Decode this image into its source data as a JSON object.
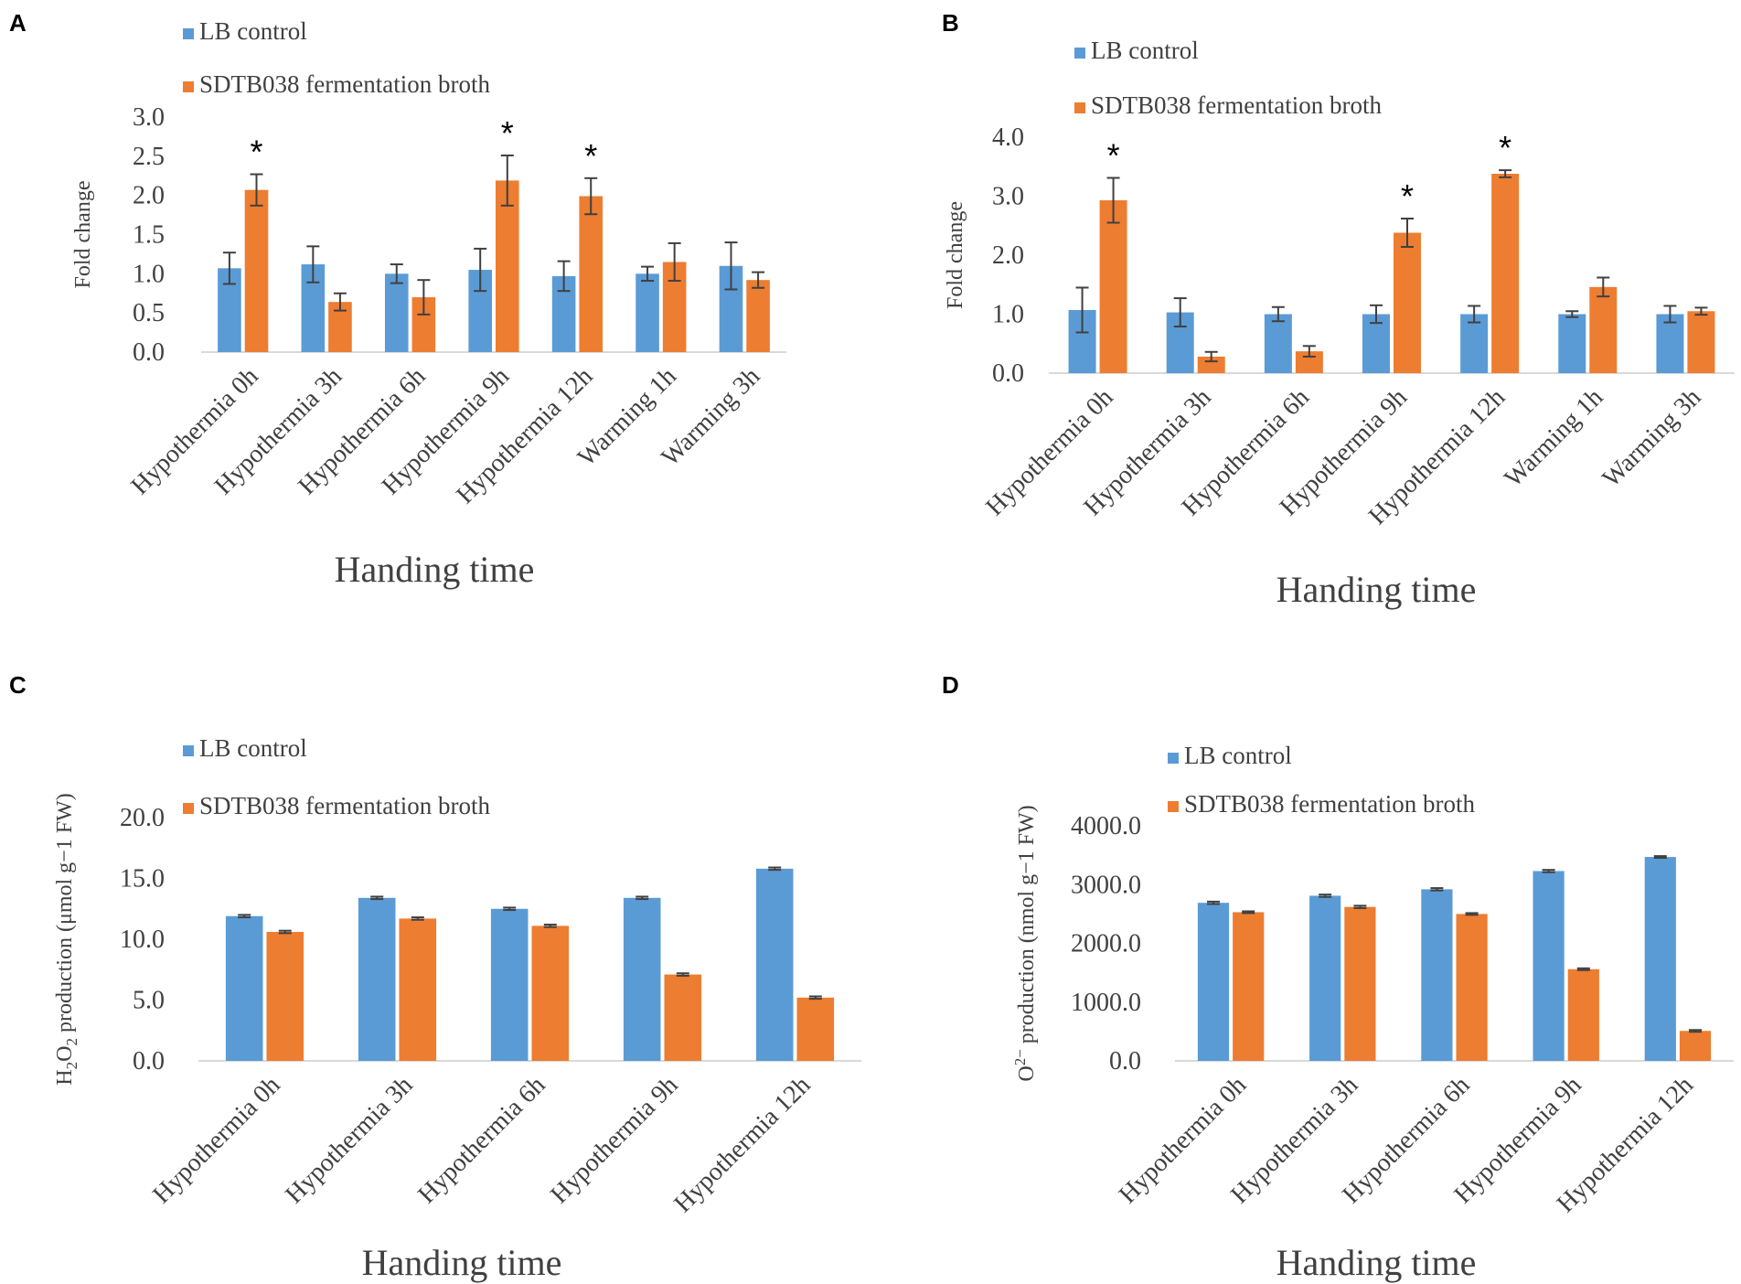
{
  "colors": {
    "control": "#5b9bd5",
    "treated": "#ed7d31",
    "axis": "#d9d9d9",
    "err": "#404040"
  },
  "legend": {
    "control": "LB control",
    "treated": "SDTB038 fermentation broth"
  },
  "chart_data": [
    {
      "panel": "A",
      "type": "bar",
      "xlabel": "Handing time",
      "ylabel": "Fold change",
      "ylim": [
        0,
        3.0
      ],
      "ytick_step": 0.5,
      "ytick_labels": [
        "0.0",
        "0.5",
        "1.0",
        "1.5",
        "2.0",
        "2.5",
        "3.0"
      ],
      "categories": [
        "Hypothermia 0h",
        "Hypothermia 3h",
        "Hypothermia 6h",
        "Hypothermia 9h",
        "Hypothermia 12h",
        "Warming 1h",
        "Warming 3h"
      ],
      "series": [
        {
          "name": "LB control",
          "values": [
            1.07,
            1.12,
            1.0,
            1.05,
            0.97,
            1.0,
            1.1
          ],
          "errors": [
            0.2,
            0.23,
            0.12,
            0.27,
            0.19,
            0.09,
            0.3
          ]
        },
        {
          "name": "SDTB038 fermentation broth",
          "values": [
            2.07,
            0.64,
            0.7,
            2.19,
            1.99,
            1.15,
            0.92
          ],
          "errors": [
            0.2,
            0.11,
            0.22,
            0.32,
            0.23,
            0.24,
            0.1
          ]
        }
      ],
      "significance": [
        "*",
        "",
        "",
        "*",
        "*",
        "",
        ""
      ],
      "sig_series": 1
    },
    {
      "panel": "B",
      "type": "bar",
      "xlabel": "Handing time",
      "ylabel": "Fold change",
      "ylim": [
        0,
        4.0
      ],
      "ytick_step": 1.0,
      "ytick_labels": [
        "0.0",
        "1.0",
        "2.0",
        "3.0",
        "4.0"
      ],
      "categories": [
        "Hypothermia 0h",
        "Hypothermia 3h",
        "Hypothermia 6h",
        "Hypothermia 9h",
        "Hypothermia 12h",
        "Warming 1h",
        "Warming 3h"
      ],
      "series": [
        {
          "name": "LB control",
          "values": [
            1.07,
            1.03,
            1.0,
            1.0,
            1.0,
            1.0,
            1.0
          ],
          "errors": [
            0.38,
            0.24,
            0.12,
            0.15,
            0.14,
            0.05,
            0.14
          ]
        },
        {
          "name": "SDTB038 fermentation broth",
          "values": [
            2.93,
            0.28,
            0.37,
            2.38,
            3.38,
            1.46,
            1.05
          ],
          "errors": [
            0.38,
            0.08,
            0.09,
            0.24,
            0.06,
            0.16,
            0.06
          ]
        }
      ],
      "significance": [
        "*",
        "",
        "",
        "*",
        "*",
        "",
        ""
      ],
      "sig_series": 1
    },
    {
      "panel": "C",
      "type": "bar",
      "xlabel": "Handing time",
      "ylabel": "H2O2 production (μmol g−1 FW)",
      "ylabel_parts": [
        "H",
        "2",
        "O",
        "2",
        " production (μmol g−1 FW)"
      ],
      "ylim": [
        0,
        20.0
      ],
      "ytick_step": 5.0,
      "ytick_labels": [
        "0.0",
        "5.0",
        "10.0",
        "15.0",
        "20.0"
      ],
      "categories": [
        "Hypothermia 0h",
        "Hypothermia 3h",
        "Hypothermia 6h",
        "Hypothermia 9h",
        "Hypothermia 12h"
      ],
      "series": [
        {
          "name": "LB control",
          "values": [
            11.9,
            13.4,
            12.5,
            13.4,
            15.8
          ],
          "errors": [
            0.1,
            0.1,
            0.1,
            0.1,
            0.1
          ]
        },
        {
          "name": "SDTB038 fermentation broth",
          "values": [
            10.6,
            11.7,
            11.1,
            7.1,
            5.2
          ],
          "errors": [
            0.1,
            0.1,
            0.1,
            0.1,
            0.1
          ]
        }
      ],
      "significance": [
        "",
        "",
        "",
        "",
        ""
      ],
      "sig_series": 1
    },
    {
      "panel": "D",
      "type": "bar",
      "xlabel": "Handing time",
      "ylabel": "O2− production (nmol g−1 FW)",
      "ylabel_parts": [
        "O",
        "2−",
        " production (nmol g−1 FW)"
      ],
      "ylim": [
        0,
        4000.0
      ],
      "ytick_step": 1000.0,
      "ytick_labels": [
        "0.0",
        "1000.0",
        "2000.0",
        "3000.0",
        "4000.0"
      ],
      "categories": [
        "Hypothermia 0h",
        "Hypothermia 3h",
        "Hypothermia 6h",
        "Hypothermia 9h",
        "Hypothermia 12h"
      ],
      "series": [
        {
          "name": "LB control",
          "values": [
            2690,
            2810,
            2920,
            3230,
            3470
          ],
          "errors": [
            20,
            20,
            20,
            20,
            15
          ]
        },
        {
          "name": "SDTB038 fermentation broth",
          "values": [
            2530,
            2620,
            2500,
            1560,
            510
          ],
          "errors": [
            15,
            20,
            15,
            15,
            15
          ]
        }
      ],
      "significance": [
        "",
        "",
        "",
        "",
        ""
      ],
      "sig_series": 1
    }
  ]
}
